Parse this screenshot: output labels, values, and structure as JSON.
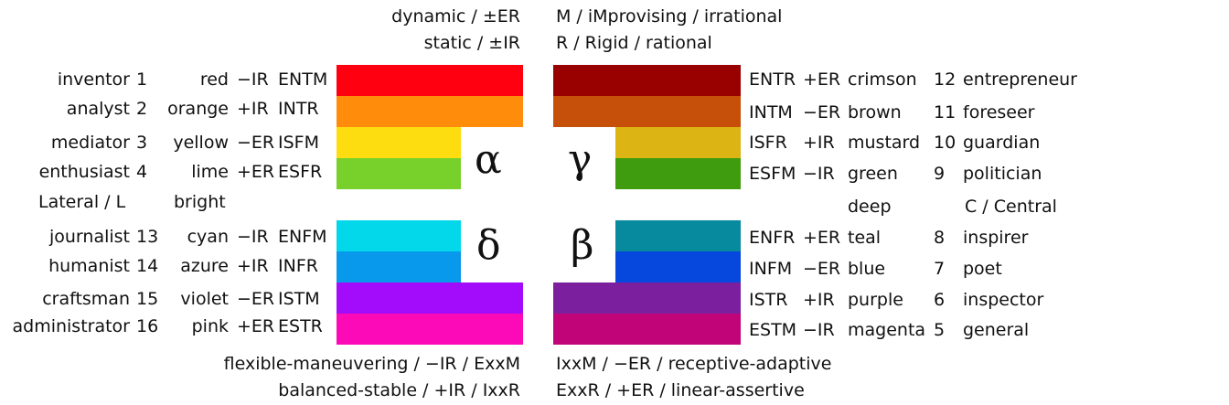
{
  "header": {
    "left_1": "dynamic / ±ER",
    "left_2": "static / ±IR",
    "right_1": "M / iMprovising / irrational",
    "right_2": "R / Rigid / rational"
  },
  "footer": {
    "left_1": "flexible-maneuvering / −IR / ExxM",
    "left_2": "balanced-stable / +IR / IxxR",
    "right_1": "IxxM / −ER / receptive-adaptive",
    "right_2": "ExxR / +ER / linear-assertive"
  },
  "quadrants": {
    "alpha": "α",
    "gamma": "γ",
    "delta": "δ",
    "beta": "β"
  },
  "mid_labels": {
    "lateral": "Lateral / L",
    "bright": "bright",
    "deep": "deep",
    "central": "C / Central"
  },
  "left_rows": [
    {
      "role": "inventor",
      "num": "1",
      "color": "red",
      "ir": "−IR",
      "type": "ENTM",
      "hex": "#ff0011"
    },
    {
      "role": "analyst",
      "num": "2",
      "color": "orange",
      "ir": "+IR",
      "type": "INTR",
      "hex": "#ff8d0b"
    },
    {
      "role": "mediator",
      "num": "3",
      "color": "yellow",
      "ir": "−ER",
      "type": "ISFM",
      "hex": "#fedd10"
    },
    {
      "role": "enthusiast",
      "num": "4",
      "color": "lime",
      "ir": "+ER",
      "type": "ESFR",
      "hex": "#78d02a"
    },
    {
      "role": "journalist",
      "num": "13",
      "color": "cyan",
      "ir": "−IR",
      "type": "ENFM",
      "hex": "#02d8ea"
    },
    {
      "role": "humanist",
      "num": "14",
      "color": "azure",
      "ir": "+IR",
      "type": "INFR",
      "hex": "#0899ec"
    },
    {
      "role": "craftsman",
      "num": "15",
      "color": "violet",
      "ir": "−ER",
      "type": "ISTM",
      "hex": "#a20cfa"
    },
    {
      "role": "administrator",
      "num": "16",
      "color": "pink",
      "ir": "+ER",
      "type": "ESTR",
      "hex": "#fc0ab8"
    }
  ],
  "right_rows": [
    {
      "type": "ENTR",
      "ir": "+ER",
      "color": "crimson",
      "num": "12",
      "role": "entrepreneur",
      "hex": "#990000"
    },
    {
      "type": "INTM",
      "ir": "−ER",
      "color": "brown",
      "num": "11",
      "role": "foreseer",
      "hex": "#c6500a"
    },
    {
      "type": "ISFR",
      "ir": "+IR",
      "color": "mustard",
      "num": "10",
      "role": "guardian",
      "hex": "#dcb413"
    },
    {
      "type": "ESFM",
      "ir": "−IR",
      "color": "green",
      "num": "9",
      "role": "politician",
      "hex": "#3f9c0f"
    },
    {
      "type": "ENFR",
      "ir": "+ER",
      "color": "teal",
      "num": "8",
      "role": "inspirer",
      "hex": "#078a9e"
    },
    {
      "type": "INFM",
      "ir": "−ER",
      "color": "blue",
      "num": "7",
      "role": "poet",
      "hex": "#0648dd"
    },
    {
      "type": "ISTR",
      "ir": "+IR",
      "color": "purple",
      "num": "6",
      "role": "inspector",
      "hex": "#7c1f9f"
    },
    {
      "type": "ESTM",
      "ir": "−IR",
      "color": "magenta",
      "num": "5",
      "role": "general",
      "hex": "#c20479"
    }
  ]
}
